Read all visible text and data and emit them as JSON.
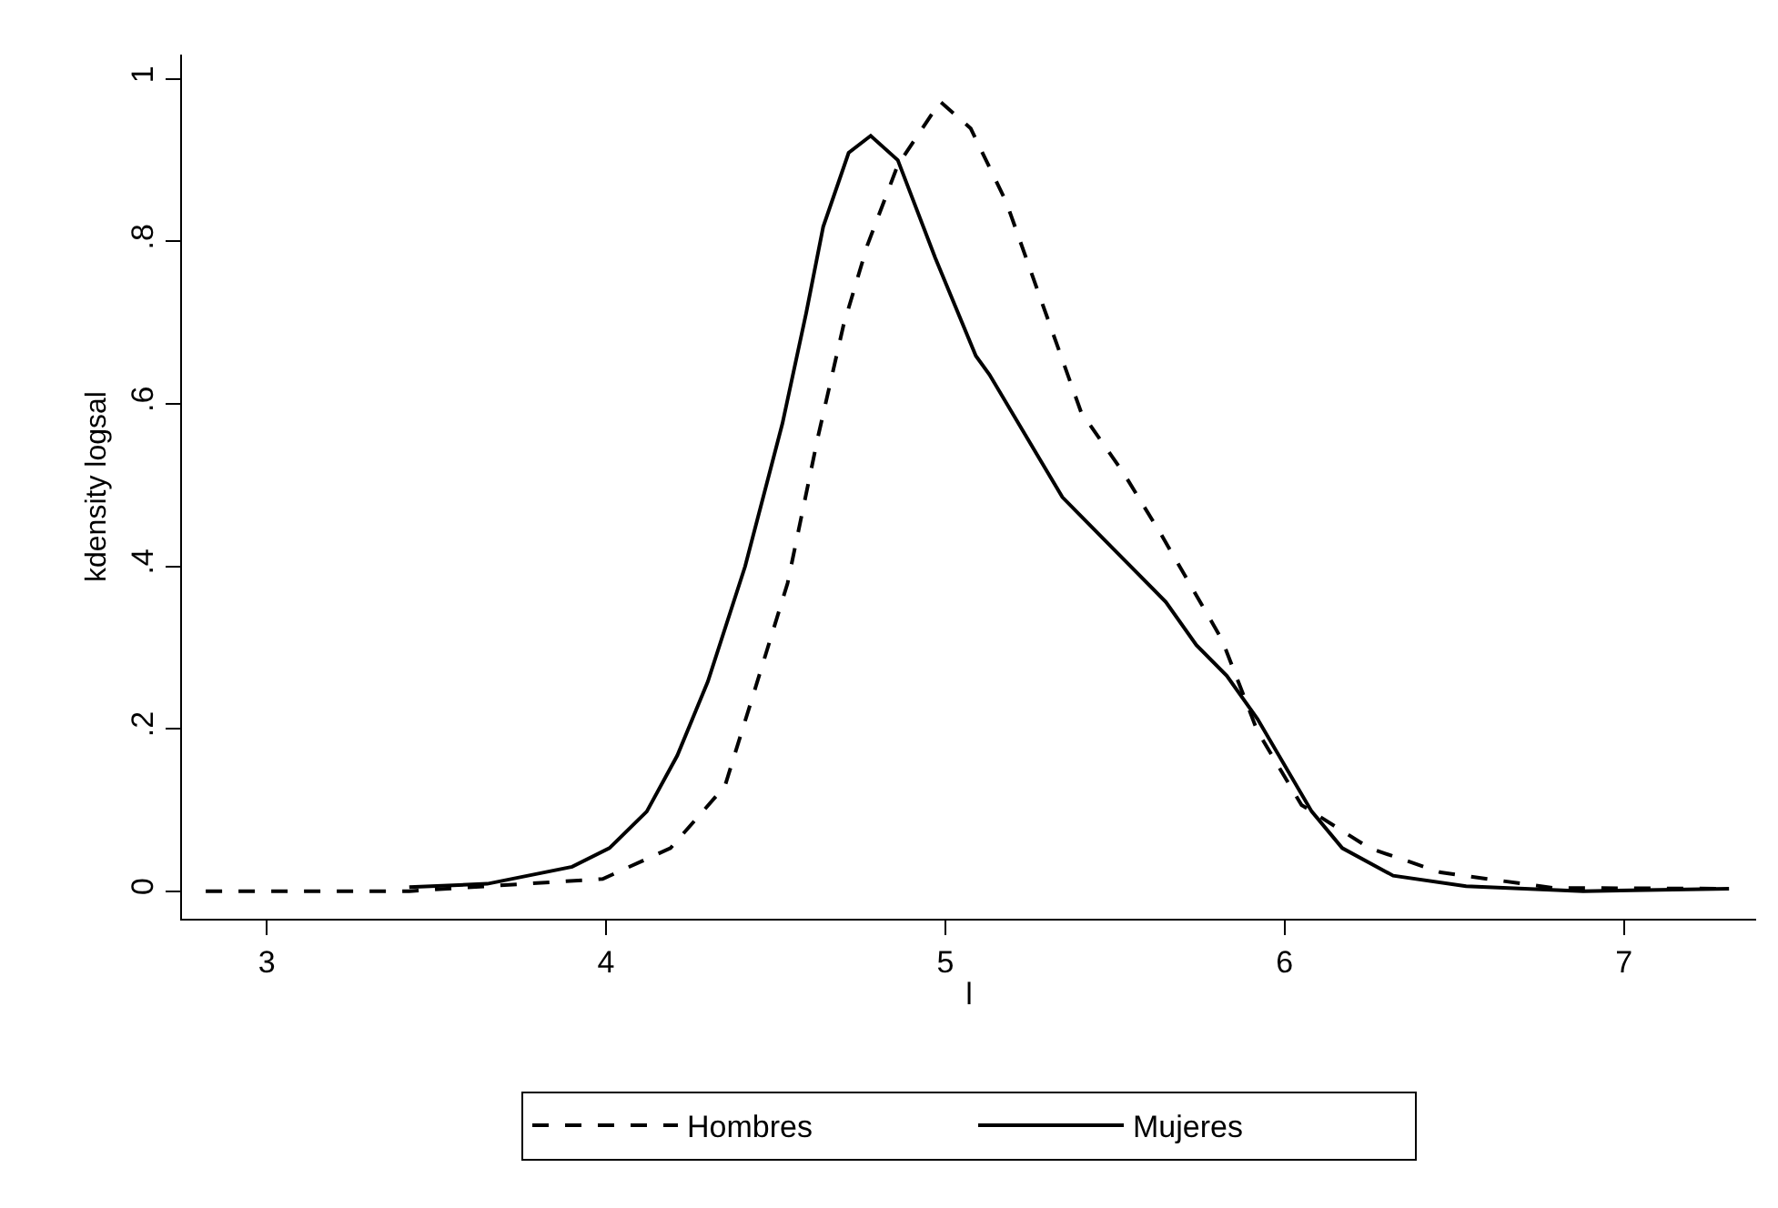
{
  "chart_data": {
    "type": "line",
    "xlabel": "l",
    "ylabel": "kdensity logsal",
    "xlim": [
      2.75,
      7.39
    ],
    "xticks": [
      3,
      4,
      5,
      6,
      7
    ],
    "ylim": [
      -0.034,
      1.03
    ],
    "yticks": [
      0,
      {
        "value": 0.2,
        "label": ".2"
      },
      {
        "value": 0.4,
        "label": ".4"
      },
      {
        "value": 0.6,
        "label": ".6"
      },
      {
        "value": 0.8,
        "label": ".8"
      },
      1
    ],
    "legend": "bottom",
    "marker": "none",
    "series": [
      {
        "name": "Hombres",
        "color": "#000000",
        "line_style": "dashed",
        "x": [
          2.82,
          3.42,
          3.99,
          4.19,
          4.35,
          4.44,
          4.535,
          4.625,
          4.7,
          4.77,
          4.86,
          4.985,
          5.075,
          5.18,
          5.27,
          5.4,
          5.525,
          5.635,
          5.815,
          5.92,
          6.05,
          6.25,
          6.46,
          6.79,
          7.31
        ],
        "values": [
          0,
          0,
          0.015,
          0.053,
          0.129,
          0.25,
          0.379,
          0.56,
          0.697,
          0.795,
          0.894,
          0.972,
          0.939,
          0.848,
          0.742,
          0.59,
          0.515,
          0.44,
          0.31,
          0.197,
          0.106,
          0.053,
          0.023,
          0.004,
          0.003
        ]
      },
      {
        "name": "Mujeres",
        "color": "#000000",
        "line_style": "solid",
        "x": [
          3.42,
          3.65,
          3.9,
          4.01,
          4.12,
          4.21,
          4.3,
          4.41,
          4.52,
          4.59,
          4.64,
          4.715,
          4.78,
          4.86,
          4.97,
          5.09,
          5.13,
          5.345,
          5.47,
          5.65,
          5.74,
          5.83,
          5.92,
          6.08,
          6.17,
          6.32,
          6.535,
          6.88,
          7.31
        ],
        "values": [
          0.005,
          0.009,
          0.03,
          0.053,
          0.098,
          0.167,
          0.258,
          0.4,
          0.576,
          0.712,
          0.818,
          0.909,
          0.93,
          0.9,
          0.78,
          0.659,
          0.636,
          0.485,
          0.432,
          0.356,
          0.303,
          0.265,
          0.212,
          0.098,
          0.053,
          0.019,
          0.006,
          0,
          0.003
        ]
      }
    ]
  }
}
